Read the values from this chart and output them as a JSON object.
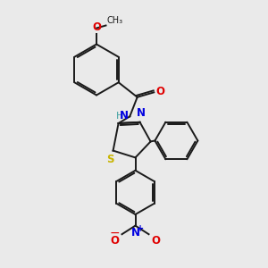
{
  "bg_color": "#eaeaea",
  "bond_color": "#1a1a1a",
  "atom_colors": {
    "O": "#e00000",
    "N": "#0000e0",
    "S": "#c8b400",
    "H": "#40a0a0",
    "C": "#1a1a1a"
  },
  "lw": 1.4,
  "fig_size": [
    3.0,
    3.0
  ],
  "dpi": 100
}
